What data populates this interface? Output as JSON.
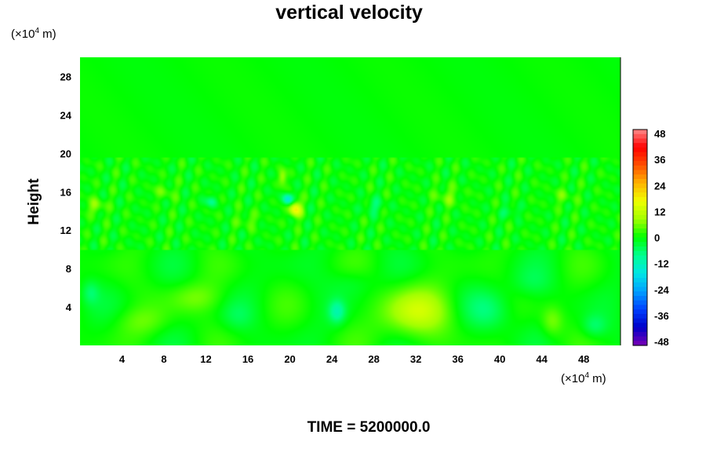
{
  "chart_data": {
    "type": "heatmap",
    "title": "vertical velocity",
    "ylabel": "Height",
    "x_unit": {
      "prefix": "(×10",
      "exp": "4",
      "suffix": " m)"
    },
    "y_unit": {
      "prefix": "(×10",
      "exp": "4",
      "suffix": " m)"
    },
    "xlim": [
      0,
      51.5
    ],
    "ylim": [
      0,
      30
    ],
    "x_ticks": [
      "4",
      "8",
      "12",
      "16",
      "20",
      "24",
      "28",
      "32",
      "36",
      "40",
      "44",
      "48"
    ],
    "y_ticks": [
      "4",
      "8",
      "12",
      "16",
      "20",
      "24",
      "28"
    ],
    "colorbar": {
      "min": -48,
      "max": 48,
      "ticks": [
        "48",
        "36",
        "24",
        "12",
        "0",
        "-12",
        "-24",
        "-36",
        "-48"
      ],
      "colors": [
        "#7a00b4",
        "#0000c8",
        "#0040ff",
        "#00a0ff",
        "#00e6e6",
        "#00ff90",
        "#00ff00",
        "#a0ff00",
        "#f0ff00",
        "#ffb400",
        "#ff5000",
        "#ff0000",
        "#ff8a8a"
      ]
    },
    "features": [
      {
        "x": 32,
        "y": 3.5,
        "sx": 3.5,
        "sy": 2.5,
        "v": 11
      },
      {
        "x": 20.5,
        "y": 14.2,
        "sx": 0.6,
        "sy": 0.8,
        "v": 18
      },
      {
        "x": 19.3,
        "y": 17.5,
        "sx": 0.4,
        "sy": 0.8,
        "v": 9
      },
      {
        "x": 19.8,
        "y": 15.2,
        "sx": 0.5,
        "sy": 0.6,
        "v": -16
      },
      {
        "x": 24.5,
        "y": 3.5,
        "sx": 0.8,
        "sy": 1.2,
        "v": -9
      },
      {
        "x": 39,
        "y": 3.6,
        "sx": 2.2,
        "sy": 2.2,
        "v": -6
      },
      {
        "x": 1,
        "y": 5.5,
        "sx": 0.8,
        "sy": 1.2,
        "v": -5
      },
      {
        "x": 49,
        "y": 2,
        "sx": 1.2,
        "sy": 1.2,
        "v": -6
      },
      {
        "x": 45,
        "y": 2.5,
        "sx": 1,
        "sy": 1.5,
        "v": 6
      },
      {
        "x": 11,
        "y": 5,
        "sx": 2.5,
        "sy": 1.5,
        "v": 5
      },
      {
        "x": 6,
        "y": 2.5,
        "sx": 2.5,
        "sy": 1.5,
        "v": 4
      },
      {
        "x": 15,
        "y": 3,
        "sx": 1.5,
        "sy": 1.5,
        "v": -3
      },
      {
        "x": 26,
        "y": 6.5,
        "sx": 2,
        "sy": 1.5,
        "v": -3
      },
      {
        "x": 43,
        "y": 6.5,
        "sx": 2,
        "sy": 1.5,
        "v": -3
      },
      {
        "x": 12.5,
        "y": 15,
        "sx": 0.6,
        "sy": 0.6,
        "v": -7
      },
      {
        "x": 1.5,
        "y": 14.5,
        "sx": 0.8,
        "sy": 0.8,
        "v": 7
      },
      {
        "x": 35,
        "y": 15.5,
        "sx": 1.2,
        "sy": 1,
        "v": 5
      },
      {
        "x": 41,
        "y": 14,
        "sx": 0.8,
        "sy": 0.6,
        "v": -5
      },
      {
        "x": 28,
        "y": 14.5,
        "sx": 1,
        "sy": 0.8,
        "v": -5
      },
      {
        "x": 46,
        "y": 15.5,
        "sx": 1,
        "sy": 0.8,
        "v": 4
      },
      {
        "x": 8,
        "y": 16,
        "sx": 1,
        "sy": 0.8,
        "v": 4
      },
      {
        "x": 16,
        "y": 13,
        "sx": 1,
        "sy": 0.8,
        "v": 4
      }
    ]
  },
  "time_label": "TIME = 5200000.0"
}
